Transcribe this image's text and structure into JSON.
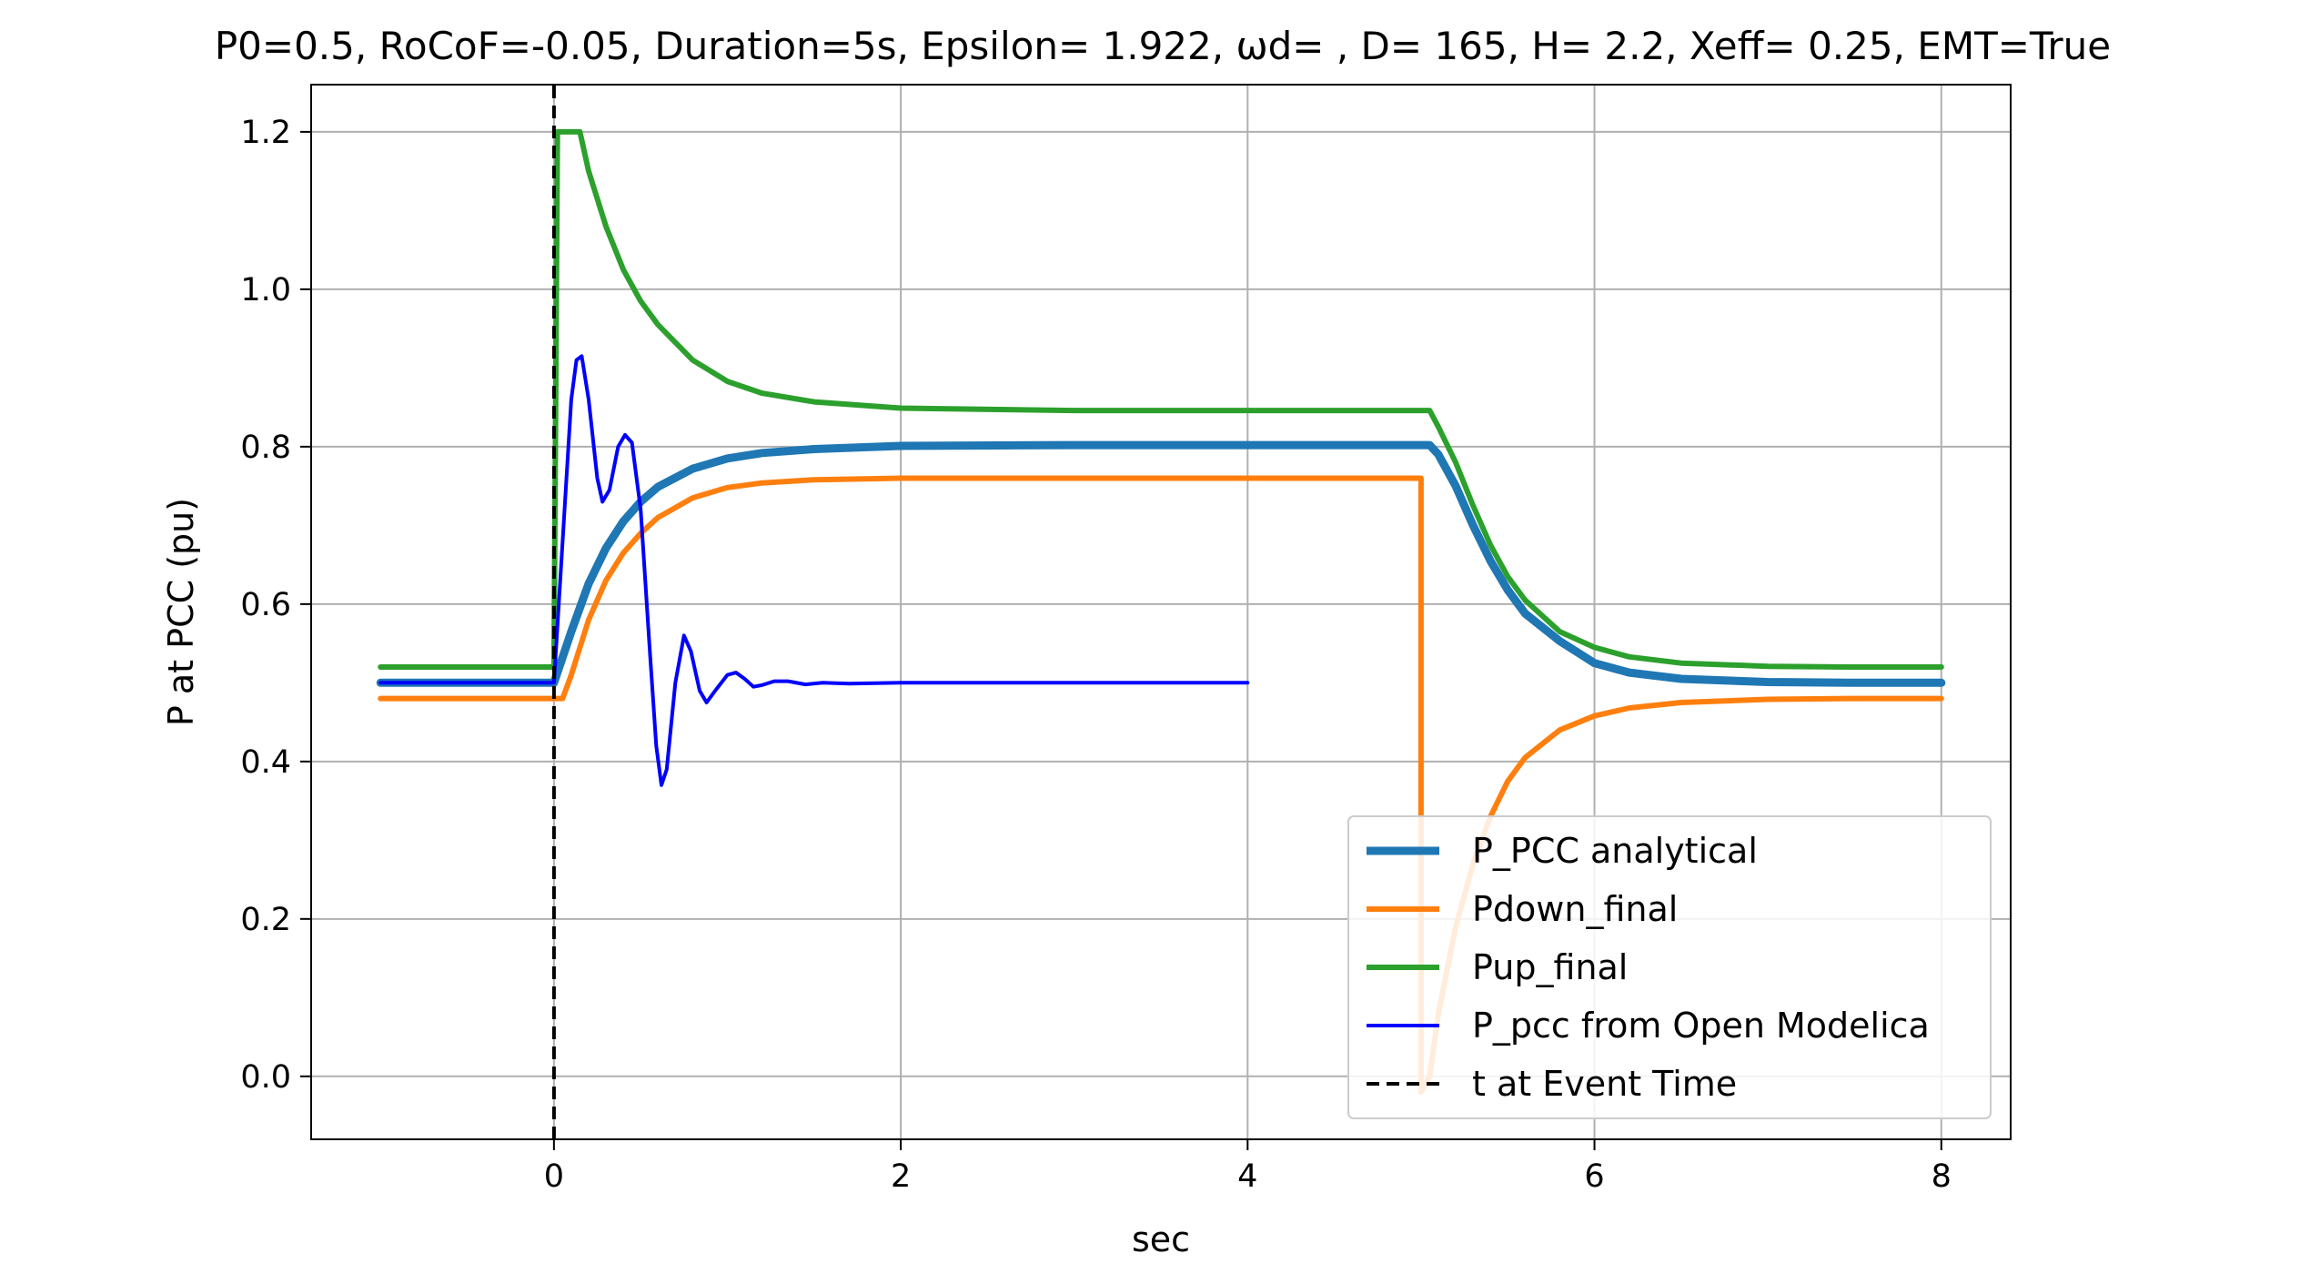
{
  "chart_data": {
    "type": "line",
    "title": "P0=0.5, RoCoF=-0.05, Duration=5s, Epsilon= 1.922, ωd= , D= 165, H= 2.2, Xeff= 0.25, EMT=True",
    "xlabel": "sec",
    "ylabel": "P at PCC (pu)",
    "xlim": [
      -1.4,
      8.4
    ],
    "ylim": [
      -0.08,
      1.26
    ],
    "xticks": [
      0,
      2,
      4,
      6,
      8
    ],
    "yticks": [
      0.0,
      0.2,
      0.4,
      0.6,
      0.8,
      1.0,
      1.2
    ],
    "xtick_labels": [
      "0",
      "2",
      "4",
      "6",
      "8"
    ],
    "ytick_labels": [
      "0.0",
      "0.2",
      "0.4",
      "0.6",
      "0.8",
      "1.0",
      "1.2"
    ],
    "grid": true,
    "legend_position": "lower-right",
    "event_time": 0,
    "series": [
      {
        "name": "P_PCC analytical",
        "color": "#1f77b4",
        "x": [
          -1,
          0,
          0.1,
          0.2,
          0.3,
          0.4,
          0.5,
          0.6,
          0.8,
          1.0,
          1.2,
          1.5,
          2.0,
          3.0,
          4.0,
          5.0,
          5.05,
          5.1,
          5.2,
          5.3,
          5.4,
          5.5,
          5.6,
          5.8,
          6.0,
          6.2,
          6.5,
          7.0,
          7.5,
          8.0
        ],
        "y": [
          0.5,
          0.5,
          0.565,
          0.626,
          0.671,
          0.705,
          0.73,
          0.749,
          0.772,
          0.785,
          0.792,
          0.797,
          0.801,
          0.802,
          0.802,
          0.802,
          0.802,
          0.79,
          0.75,
          0.7,
          0.655,
          0.618,
          0.588,
          0.553,
          0.525,
          0.513,
          0.505,
          0.501,
          0.5,
          0.5
        ]
      },
      {
        "name": "Pdown_final",
        "color": "#ff7f0e",
        "x": [
          -1,
          0,
          0.05,
          0.1,
          0.2,
          0.3,
          0.4,
          0.5,
          0.6,
          0.8,
          1.0,
          1.2,
          1.5,
          2.0,
          3.0,
          4.0,
          5.0,
          5.0,
          5.0,
          5.05,
          5.1,
          5.2,
          5.3,
          5.4,
          5.5,
          5.6,
          5.8,
          6.0,
          6.2,
          6.5,
          7.0,
          7.5,
          8.0
        ],
        "y": [
          0.48,
          0.48,
          0.48,
          0.51,
          0.58,
          0.63,
          0.665,
          0.69,
          0.71,
          0.735,
          0.748,
          0.754,
          0.758,
          0.76,
          0.76,
          0.76,
          0.76,
          0.3,
          -0.02,
          0.0,
          0.08,
          0.19,
          0.27,
          0.33,
          0.375,
          0.405,
          0.44,
          0.458,
          0.468,
          0.475,
          0.479,
          0.48,
          0.48
        ]
      },
      {
        "name": "Pup_final",
        "color": "#2ca02c",
        "x": [
          -1,
          0,
          0.02,
          0.05,
          0.15,
          0.2,
          0.3,
          0.4,
          0.5,
          0.6,
          0.8,
          1.0,
          1.2,
          1.5,
          2.0,
          3.0,
          4.0,
          5.0,
          5.05,
          5.1,
          5.2,
          5.3,
          5.4,
          5.5,
          5.6,
          5.8,
          6.0,
          6.2,
          6.5,
          7.0,
          7.5,
          8.0
        ],
        "y": [
          0.52,
          0.52,
          1.2,
          1.2,
          1.2,
          1.15,
          1.08,
          1.025,
          0.985,
          0.955,
          0.91,
          0.883,
          0.868,
          0.857,
          0.849,
          0.846,
          0.846,
          0.846,
          0.846,
          0.825,
          0.78,
          0.725,
          0.675,
          0.635,
          0.605,
          0.565,
          0.545,
          0.533,
          0.525,
          0.521,
          0.52,
          0.52
        ]
      },
      {
        "name": "P_pcc from Open Modelica",
        "color": "#0000ff",
        "x": [
          -1,
          0,
          0.05,
          0.1,
          0.13,
          0.16,
          0.2,
          0.25,
          0.28,
          0.32,
          0.37,
          0.41,
          0.45,
          0.5,
          0.55,
          0.59,
          0.62,
          0.65,
          0.7,
          0.75,
          0.79,
          0.84,
          0.88,
          0.93,
          1.0,
          1.05,
          1.1,
          1.15,
          1.2,
          1.27,
          1.35,
          1.45,
          1.55,
          1.7,
          2.0,
          3.0,
          4.0
        ],
        "y": [
          0.5,
          0.5,
          0.68,
          0.86,
          0.91,
          0.915,
          0.86,
          0.76,
          0.73,
          0.745,
          0.8,
          0.815,
          0.805,
          0.72,
          0.55,
          0.42,
          0.37,
          0.39,
          0.5,
          0.56,
          0.54,
          0.49,
          0.475,
          0.49,
          0.51,
          0.513,
          0.505,
          0.495,
          0.497,
          0.502,
          0.502,
          0.498,
          0.5,
          0.499,
          0.5,
          0.5,
          0.5
        ]
      },
      {
        "name": "t at Event Time",
        "color": "#000000",
        "dashed": true,
        "x": [
          0,
          0
        ],
        "y": [
          -0.08,
          1.26
        ]
      }
    ]
  }
}
